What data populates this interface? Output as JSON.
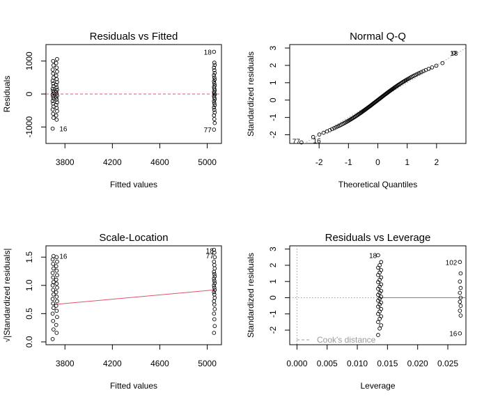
{
  "chart_data": [
    {
      "type": "scatter",
      "title": "Residuals vs Fitted",
      "xlabel": "Fitted values",
      "ylabel": "Residuals",
      "xlim": [
        3640,
        5120
      ],
      "ylim": [
        -1500,
        1500
      ],
      "xticks": [
        3800,
        4200,
        4600,
        5000
      ],
      "yticks": [
        -1000,
        0,
        1000
      ],
      "xtick_labels": [
        "3800",
        "4200",
        "4600",
        "5000"
      ],
      "ytick_labels": [
        "-1000",
        "0",
        "1000"
      ],
      "groups_x": [
        3700,
        3730,
        5060
      ],
      "group_jitter": 12,
      "points_left": [
        -1050,
        -780,
        -720,
        -650,
        -600,
        -520,
        -470,
        -420,
        -380,
        -330,
        -290,
        -250,
        -210,
        -170,
        -140,
        -110,
        -80,
        -50,
        -20,
        10,
        40,
        70,
        100,
        130,
        160,
        200,
        240,
        280,
        320,
        360,
        400,
        450,
        500,
        560,
        620,
        680,
        740,
        800,
        870,
        940,
        1000,
        1060
      ],
      "points_right": [
        -1080,
        -880,
        -760,
        -650,
        -560,
        -480,
        -410,
        -340,
        -280,
        -220,
        -160,
        -110,
        -60,
        -20,
        20,
        60,
        110,
        160,
        210,
        260,
        320,
        380,
        440,
        500,
        570,
        640,
        720,
        800,
        880,
        950,
        1280
      ],
      "reference_line": {
        "y": 0,
        "color": "#df536b",
        "style": "dashed"
      },
      "point_labels": [
        {
          "text": "18",
          "x": 5060,
          "y": 1280
        },
        {
          "text": "16",
          "x": 3730,
          "y": -1050
        },
        {
          "text": "77",
          "x": 5060,
          "y": -1080
        }
      ]
    },
    {
      "type": "scatter",
      "title": "Normal Q-Q",
      "xlabel": "Theoretical Quantiles",
      "ylabel": "Standardized residuals",
      "xlim": [
        -3,
        3
      ],
      "ylim": [
        -2.5,
        3.2
      ],
      "xticks": [
        -2,
        -1,
        0,
        1,
        2
      ],
      "yticks": [
        -2,
        -1,
        0,
        1,
        2,
        3
      ],
      "xtick_labels": [
        "-2",
        "-1",
        "0",
        "1",
        "2"
      ],
      "ytick_labels": [
        "-2",
        "-1",
        "0",
        "1",
        "2",
        "3"
      ],
      "n_points": 108,
      "qq_shape": {
        "s_curve": 0.12,
        "top_quantile_value": 2.72
      },
      "reference_line": {
        "slope": 1,
        "intercept": 0,
        "color": "#9a9a9a",
        "style": "dotted"
      },
      "point_labels": [
        {
          "text": "18",
          "x": 2.58,
          "y": 2.72
        },
        {
          "text": "77",
          "x": -2.58,
          "y": -2.35
        },
        {
          "text": "16",
          "x": -2.3,
          "y": -2.32
        }
      ]
    },
    {
      "type": "scatter",
      "title": "Scale-Location",
      "xlabel": "Fitted values",
      "ylabel": "√|Standardized residuals|",
      "xlim": [
        3640,
        5120
      ],
      "ylim": [
        -0.05,
        1.7
      ],
      "xticks": [
        3800,
        4200,
        4600,
        5000
      ],
      "yticks": [
        0.0,
        0.5,
        1.0,
        1.5
      ],
      "xtick_labels": [
        "3800",
        "4200",
        "4600",
        "5000"
      ],
      "ytick_labels": [
        "0.0",
        "0.5",
        "1.0",
        "1.5"
      ],
      "groups_x": [
        3700,
        3730,
        5060
      ],
      "group_jitter": 12,
      "points_left": [
        0.05,
        0.16,
        0.22,
        0.3,
        0.37,
        0.44,
        0.5,
        0.55,
        0.6,
        0.64,
        0.68,
        0.72,
        0.76,
        0.8,
        0.84,
        0.88,
        0.92,
        0.96,
        1.0,
        1.03,
        1.06,
        1.1,
        1.14,
        1.18,
        1.22,
        1.26,
        1.3,
        1.34,
        1.38,
        1.42,
        1.46,
        1.5,
        1.52
      ],
      "points_right": [
        0.16,
        0.28,
        0.4,
        0.5,
        0.58,
        0.66,
        0.72,
        0.78,
        0.84,
        0.88,
        0.92,
        0.96,
        1.0,
        1.04,
        1.08,
        1.12,
        1.16,
        1.2,
        1.24,
        1.3,
        1.36,
        1.42,
        1.5,
        1.58,
        1.63
      ],
      "trend_line": {
        "x": [
          3700,
          5060
        ],
        "y": [
          0.66,
          0.92
        ],
        "color": "#df536b"
      },
      "point_labels": [
        {
          "text": "16",
          "x": 3730,
          "y": 1.52
        },
        {
          "text": "18",
          "x": 5060,
          "y": 1.63
        },
        {
          "text": "77",
          "x": 5060,
          "y": 1.55
        }
      ]
    },
    {
      "type": "scatter",
      "title": "Residuals vs Leverage",
      "xlabel": "Leverage",
      "ylabel": "Standardized residuals",
      "xlim": [
        -0.0012,
        0.028
      ],
      "ylim": [
        -2.9,
        3.2
      ],
      "xticks": [
        0.0,
        0.005,
        0.01,
        0.015,
        0.02,
        0.025
      ],
      "yticks": [
        -2,
        -1,
        0,
        1,
        2,
        3
      ],
      "xtick_labels": [
        "0.000",
        "0.005",
        "0.010",
        "0.015",
        "0.020",
        "0.025"
      ],
      "ytick_labels": [
        "-2",
        "-1",
        "0",
        "1",
        "2",
        "3"
      ],
      "groups_x": [
        0.0137,
        0.027
      ],
      "group_jitter": 0.00025,
      "points_left": [
        -2.3,
        -1.9,
        -1.7,
        -1.5,
        -1.3,
        -1.15,
        -1.0,
        -0.85,
        -0.7,
        -0.55,
        -0.42,
        -0.3,
        -0.18,
        -0.06,
        0.06,
        0.18,
        0.3,
        0.42,
        0.55,
        0.68,
        0.82,
        0.96,
        1.1,
        1.25,
        1.4,
        1.55,
        1.7,
        1.85,
        2.0,
        2.2,
        2.62
      ],
      "points_right": [
        -2.2,
        -1.1,
        -0.8,
        -0.5,
        -0.25,
        0.0,
        0.3,
        0.6,
        1.0,
        1.5,
        2.2
      ],
      "reference_lines": [
        {
          "y": 0,
          "color": "#9a9a9a",
          "style": "dotted"
        },
        {
          "x": 0,
          "color": "#9a9a9a",
          "style": "dotted"
        }
      ],
      "trend_line": {
        "y": 0,
        "color": "#df536b",
        "from_x": 0.0135
      },
      "legend": {
        "label": "Cook's distance",
        "position": "bottom-left",
        "color": "#9a9a9a",
        "style": "dashed"
      },
      "point_labels": [
        {
          "text": "18",
          "x": 0.0137,
          "y": 2.62
        },
        {
          "text": "102",
          "x": 0.027,
          "y": 2.2
        },
        {
          "text": "16",
          "x": 0.027,
          "y": -2.2
        }
      ]
    }
  ]
}
